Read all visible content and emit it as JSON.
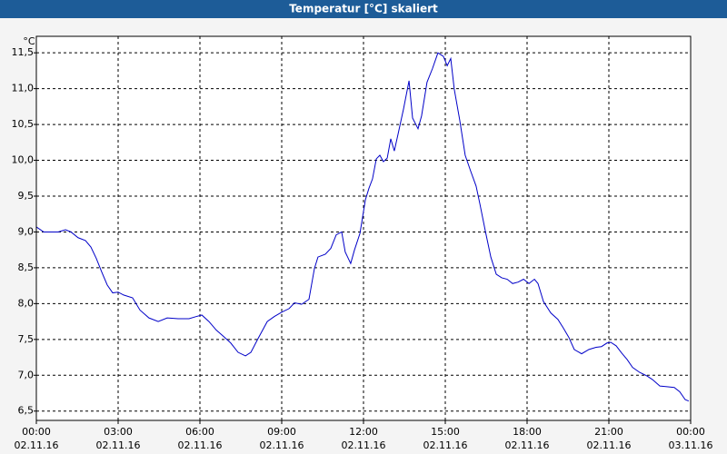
{
  "chart_data": {
    "type": "line",
    "title": "Temperatur [°C] skaliert",
    "y_unit": "°C",
    "xlim": [
      0,
      24
    ],
    "ylim": [
      6.37,
      11.73
    ],
    "grid": true,
    "xticks": [
      {
        "value": 0,
        "label": "00:00"
      },
      {
        "value": 3,
        "label": "03:00"
      },
      {
        "value": 6,
        "label": "06:00"
      },
      {
        "value": 9,
        "label": "09:00"
      },
      {
        "value": 12,
        "label": "12:00"
      },
      {
        "value": 15,
        "label": "15:00"
      },
      {
        "value": 18,
        "label": "18:00"
      },
      {
        "value": 21,
        "label": "21:00"
      },
      {
        "value": 24,
        "label": "00:00"
      }
    ],
    "xtick_dates": [
      "02.11.16",
      "02.11.16",
      "02.11.16",
      "02.11.16",
      "02.11.16",
      "02.11.16",
      "02.11.16",
      "02.11.16",
      "03.11.16"
    ],
    "yticks": [
      {
        "value": 6.5,
        "label": "6,5"
      },
      {
        "value": 7,
        "label": "7,0"
      },
      {
        "value": 7.5,
        "label": "7,5"
      },
      {
        "value": 8,
        "label": "8,0"
      },
      {
        "value": 8.5,
        "label": "8,5"
      },
      {
        "value": 9,
        "label": "9,0"
      },
      {
        "value": 9.5,
        "label": "9,5"
      },
      {
        "value": 10,
        "label": "10,0"
      },
      {
        "value": 10.5,
        "label": "10,5"
      },
      {
        "value": 11,
        "label": "11,0"
      },
      {
        "value": 11.5,
        "label": "11,5"
      }
    ],
    "color": "#0000c8",
    "x": [
      0,
      0.27,
      0.53,
      0.8,
      1.07,
      1.27,
      1.53,
      1.8,
      2,
      2.2,
      2.4,
      2.6,
      2.8,
      3,
      3.2,
      3.53,
      3.8,
      4.13,
      4.47,
      4.8,
      5.2,
      5.6,
      5.87,
      6.07,
      6.33,
      6.6,
      6.87,
      7.13,
      7.4,
      7.67,
      7.87,
      8.13,
      8.47,
      8.73,
      9,
      9.27,
      9.47,
      9.73,
      10,
      10.2,
      10.33,
      10.6,
      10.8,
      11,
      11.2,
      11.33,
      11.53,
      11.67,
      11.87,
      12.07,
      12.2,
      12.33,
      12.47,
      12.6,
      12.73,
      12.87,
      13,
      13.13,
      13.27,
      13.47,
      13.67,
      13.8,
      14,
      14.13,
      14.33,
      14.53,
      14.73,
      14.93,
      15.07,
      15.2,
      15.33,
      15.53,
      15.73,
      15.93,
      16.13,
      16.27,
      16.47,
      16.67,
      16.87,
      17.07,
      17.27,
      17.47,
      17.67,
      17.87,
      18.07,
      18.27,
      18.4,
      18.6,
      18.87,
      19.13,
      19.33,
      19.53,
      19.73,
      20,
      20.27,
      20.53,
      20.73,
      20.93,
      21.07,
      21.27,
      21.47,
      21.67,
      21.87,
      22.13,
      22.4,
      22.6,
      22.87,
      23.13,
      23.4,
      23.6,
      23.8,
      23.93
    ],
    "values": [
      9.07,
      9.0,
      9.0,
      9.0,
      9.03,
      9.0,
      8.92,
      8.88,
      8.79,
      8.63,
      8.44,
      8.26,
      8.15,
      8.16,
      8.12,
      8.08,
      7.91,
      7.8,
      7.75,
      7.8,
      7.79,
      7.79,
      7.82,
      7.84,
      7.75,
      7.63,
      7.54,
      7.45,
      7.32,
      7.27,
      7.32,
      7.51,
      7.75,
      7.82,
      7.88,
      7.93,
      8.01,
      7.99,
      8.06,
      8.49,
      8.65,
      8.69,
      8.77,
      8.96,
      9.0,
      8.72,
      8.56,
      8.75,
      8.98,
      9.45,
      9.61,
      9.74,
      10.02,
      10.07,
      9.98,
      10.03,
      10.3,
      10.13,
      10.37,
      10.72,
      11.11,
      10.59,
      10.44,
      10.62,
      11.09,
      11.28,
      11.5,
      11.45,
      11.32,
      11.42,
      10.99,
      10.56,
      10.07,
      9.85,
      9.64,
      9.39,
      9.01,
      8.65,
      8.41,
      8.36,
      8.34,
      8.28,
      8.3,
      8.34,
      8.28,
      8.34,
      8.28,
      8.03,
      7.87,
      7.78,
      7.66,
      7.53,
      7.36,
      7.3,
      7.36,
      7.39,
      7.4,
      7.45,
      7.46,
      7.41,
      7.31,
      7.22,
      7.11,
      7.04,
      6.99,
      6.94,
      6.85,
      6.84,
      6.83,
      6.77,
      6.66,
      6.64
    ]
  }
}
